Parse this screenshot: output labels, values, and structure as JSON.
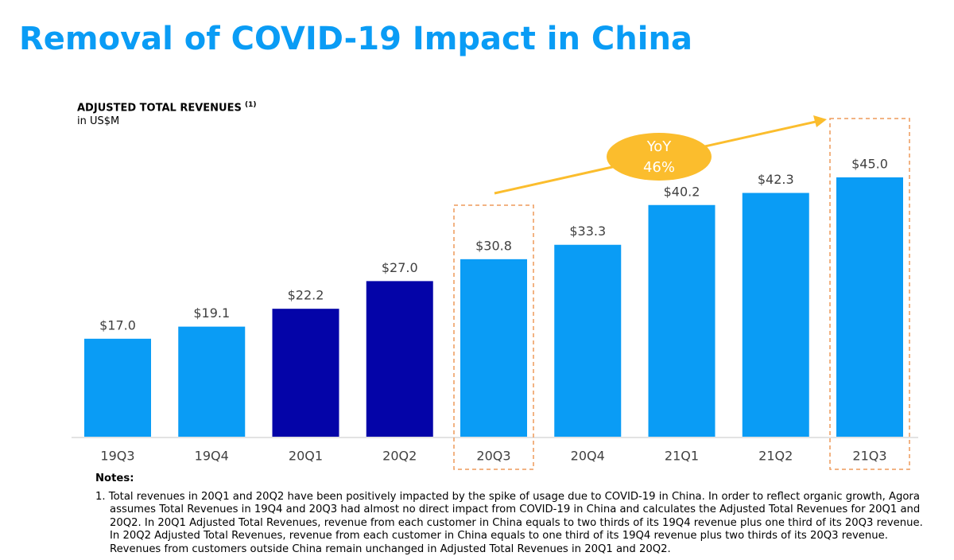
{
  "chart_data": {
    "type": "bar",
    "title": "Removal of COVID-19 Impact in China",
    "subtitle": "ADJUSTED TOTAL REVENUES",
    "subtitle_note": "(1)",
    "unit": "in US$M",
    "categories": [
      "19Q3",
      "19Q4",
      "20Q1",
      "20Q2",
      "20Q3",
      "20Q4",
      "21Q1",
      "21Q2",
      "21Q3"
    ],
    "values": [
      17.0,
      19.1,
      22.2,
      27.0,
      30.8,
      33.3,
      40.2,
      42.3,
      45.0
    ],
    "value_labels": [
      "$17.0",
      "$19.1",
      "$22.2",
      "$27.0",
      "$30.8",
      "$33.3",
      "$40.2",
      "$42.3",
      "$45.0"
    ],
    "colors": [
      "#0a9cf5",
      "#0a9cf5",
      "#0404a8",
      "#0404a8",
      "#0a9cf5",
      "#0a9cf5",
      "#0a9cf5",
      "#0a9cf5",
      "#0a9cf5"
    ],
    "annotation": [
      "YoY",
      "46%"
    ]
  },
  "notes": {
    "heading": "Notes:",
    "items": [
      "1. Total revenues in 20Q1 and 20Q2 have been positively impacted by the spike of usage due to COVID-19 in China. In order to reflect organic growth, Agora assumes Total Revenues in 19Q4 and 20Q3 had almost no direct impact from COVID-19 in China and calculates the Adjusted Total Revenues for 20Q1 and 20Q2. In 20Q1 Adjusted Total Revenues, revenue from each customer in China equals to two thirds of its 19Q4 revenue plus one third of its 20Q3 revenue. In 20Q2 Adjusted Total Revenues, revenue from each customer in China equals to one third of its 19Q4 revenue plus two thirds of its 20Q3 revenue. Revenues from customers outside China remain unchanged in Adjusted Total Revenues in 20Q1 and 20Q2."
    ]
  }
}
